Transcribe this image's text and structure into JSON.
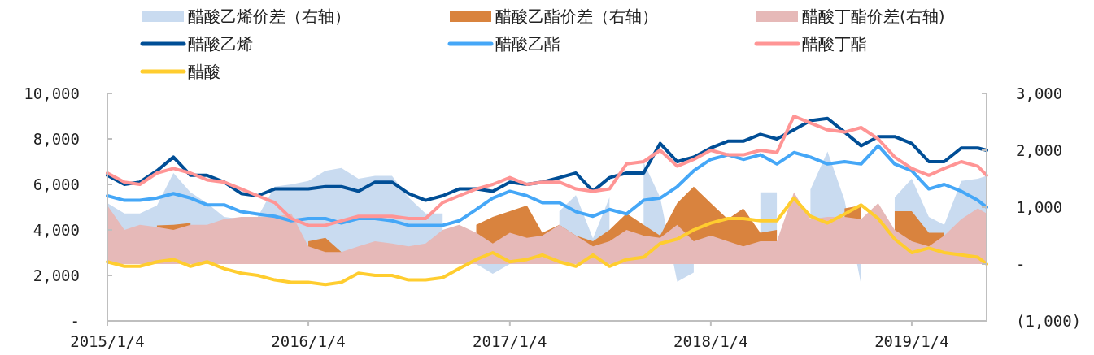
{
  "chart_data": {
    "type": "line",
    "x": [
      "2015-01-04",
      "2015-02-04",
      "2015-03-04",
      "2015-04-04",
      "2015-05-04",
      "2015-06-04",
      "2015-07-04",
      "2015-08-04",
      "2015-09-04",
      "2015-10-04",
      "2015-11-04",
      "2015-12-04",
      "2016-01-04",
      "2016-02-04",
      "2016-03-04",
      "2016-04-04",
      "2016-05-04",
      "2016-06-04",
      "2016-07-04",
      "2016-08-04",
      "2016-09-04",
      "2016-10-04",
      "2016-11-04",
      "2016-12-04",
      "2017-01-04",
      "2017-02-04",
      "2017-03-04",
      "2017-04-04",
      "2017-05-04",
      "2017-06-04",
      "2017-07-04",
      "2017-08-04",
      "2017-09-04",
      "2017-10-04",
      "2017-11-04",
      "2017-12-04",
      "2018-01-04",
      "2018-02-04",
      "2018-03-04",
      "2018-04-04",
      "2018-05-04",
      "2018-06-04",
      "2018-07-04",
      "2018-08-04",
      "2018-09-04",
      "2018-10-04",
      "2018-11-04",
      "2018-12-04",
      "2019-01-04",
      "2019-02-04",
      "2019-03-04",
      "2019-04-04",
      "2019-05-04",
      "2019-05-20"
    ],
    "series": [
      {
        "name": "醋酸乙烯价差（右轴）",
        "type": "area",
        "axis": "y2",
        "color": "#c9dbf0",
        "values": [
          1070,
          890,
          890,
          1030,
          1600,
          1260,
          1070,
          830,
          790,
          830,
          1360,
          1400,
          1460,
          1640,
          1690,
          1500,
          1550,
          1550,
          1170,
          890,
          890,
          null,
          0,
          -170,
          0,
          null,
          null,
          930,
          1210,
          450,
          1170,
          null,
          1790,
          1170,
          -310,
          -150,
          null,
          null,
          null,
          1260,
          1260,
          null,
          1310,
          1980,
          1120,
          -360,
          null,
          1170,
          1500,
          830,
          690,
          1460,
          1500,
          1550
        ]
      },
      {
        "name": "醋酸乙酯价差（右轴）",
        "type": "area",
        "axis": "y2",
        "color": "#d9833e",
        "values": [
          null,
          null,
          null,
          680,
          690,
          720,
          null,
          null,
          null,
          null,
          null,
          null,
          400,
          460,
          210,
          null,
          null,
          null,
          null,
          null,
          null,
          null,
          690,
          830,
          930,
          1030,
          550,
          690,
          500,
          400,
          600,
          890,
          690,
          500,
          1070,
          1360,
          1070,
          790,
          980,
          550,
          600,
          null,
          null,
          null,
          980,
          1030,
          null,
          930,
          930,
          550,
          550,
          null,
          null,
          null
        ]
      },
      {
        "name": "醋酸丁酯价差(右轴)",
        "type": "area",
        "axis": "y2",
        "color": "#e6b9b8",
        "values": [
          1030,
          600,
          690,
          650,
          600,
          690,
          690,
          790,
          830,
          830,
          830,
          890,
          310,
          210,
          210,
          310,
          400,
          360,
          310,
          360,
          600,
          690,
          550,
          360,
          550,
          460,
          500,
          690,
          500,
          310,
          400,
          600,
          500,
          460,
          690,
          400,
          500,
          400,
          310,
          400,
          400,
          1260,
          790,
          830,
          830,
          790,
          1070,
          600,
          400,
          310,
          500,
          790,
          980,
          890
        ]
      },
      {
        "name": "醋酸乙烯",
        "color": "#004e96",
        "values": [
          6400,
          6000,
          6100,
          6600,
          7200,
          6400,
          6400,
          6100,
          5600,
          5500,
          5800,
          5800,
          5800,
          5900,
          5900,
          5700,
          6100,
          6100,
          5600,
          5300,
          5500,
          5800,
          5800,
          5700,
          6100,
          6000,
          6100,
          6300,
          6500,
          5700,
          6300,
          6500,
          6500,
          7800,
          7000,
          7200,
          7600,
          7900,
          7900,
          8200,
          8000,
          8400,
          8800,
          8900,
          8300,
          7700,
          8100,
          8100,
          7800,
          7000,
          7000,
          7600,
          7600,
          7500
        ]
      },
      {
        "name": "醋酸乙酯",
        "color": "#45a7f7",
        "values": [
          5500,
          5300,
          5300,
          5400,
          5600,
          5400,
          5100,
          5100,
          4800,
          4700,
          4600,
          4400,
          4500,
          4500,
          4300,
          4500,
          4500,
          4400,
          4200,
          4200,
          4200,
          4400,
          4900,
          5400,
          5700,
          5500,
          5200,
          5200,
          4800,
          4600,
          4900,
          4700,
          5300,
          5400,
          5900,
          6600,
          7100,
          7300,
          7100,
          7300,
          6900,
          7400,
          7200,
          6900,
          7000,
          6900,
          7700,
          6900,
          6600,
          5800,
          6000,
          5700,
          5300,
          5000
        ]
      },
      {
        "name": "醋酸丁酯",
        "color": "#ff9595",
        "values": [
          6500,
          6100,
          6000,
          6500,
          6700,
          6500,
          6200,
          6100,
          5800,
          5500,
          5200,
          4500,
          4200,
          4200,
          4400,
          4600,
          4600,
          4600,
          4500,
          4500,
          5200,
          5500,
          5800,
          6000,
          6300,
          6000,
          6100,
          6100,
          5800,
          5700,
          5800,
          6900,
          7000,
          7500,
          6800,
          7100,
          7500,
          7300,
          7300,
          7500,
          7400,
          9000,
          8700,
          8400,
          8300,
          8500,
          8000,
          7200,
          6700,
          6400,
          6700,
          7000,
          6800,
          6400
        ]
      },
      {
        "name": "醋酸",
        "color": "#ffcd2f",
        "values": [
          2600,
          2400,
          2400,
          2600,
          2700,
          2400,
          2600,
          2300,
          2100,
          2000,
          1800,
          1700,
          1700,
          1600,
          1700,
          2100,
          2000,
          2000,
          1800,
          1800,
          1900,
          2300,
          2700,
          3000,
          2600,
          2700,
          2900,
          2600,
          2400,
          2900,
          2400,
          2700,
          2800,
          3400,
          3600,
          4000,
          4300,
          4500,
          4500,
          4400,
          4400,
          5400,
          4600,
          4300,
          4700,
          5100,
          4500,
          3600,
          3000,
          3200,
          3000,
          2900,
          2800,
          2500
        ]
      }
    ],
    "xlim": [
      "2015-01-04",
      "2019-05-20"
    ],
    "xticks": [
      {
        "value": "2015-01-04",
        "label": "2015/1/4"
      },
      {
        "value": "2016-01-04",
        "label": "2016/1/4"
      },
      {
        "value": "2017-01-04",
        "label": "2017/1/4"
      },
      {
        "value": "2018-01-04",
        "label": "2018/1/4"
      },
      {
        "value": "2019-01-04",
        "label": "2019/1/4"
      }
    ],
    "ylim": [
      0,
      10000
    ],
    "yticks": [
      {
        "value": 0,
        "label": "-"
      },
      {
        "value": 2000,
        "label": "2,000"
      },
      {
        "value": 4000,
        "label": "4,000"
      },
      {
        "value": 6000,
        "label": "6,000"
      },
      {
        "value": 8000,
        "label": "8,000"
      },
      {
        "value": 10000,
        "label": "10,000"
      }
    ],
    "y2lim": [
      -1000,
      3000
    ],
    "y2ticks": [
      {
        "value": -1000,
        "label": "(1,000)"
      },
      {
        "value": 0,
        "label": "-"
      },
      {
        "value": 1000,
        "label": "1,000"
      },
      {
        "value": 2000,
        "label": "2,000"
      },
      {
        "value": 3000,
        "label": "3,000"
      }
    ],
    "legend": "top",
    "grid": false
  }
}
